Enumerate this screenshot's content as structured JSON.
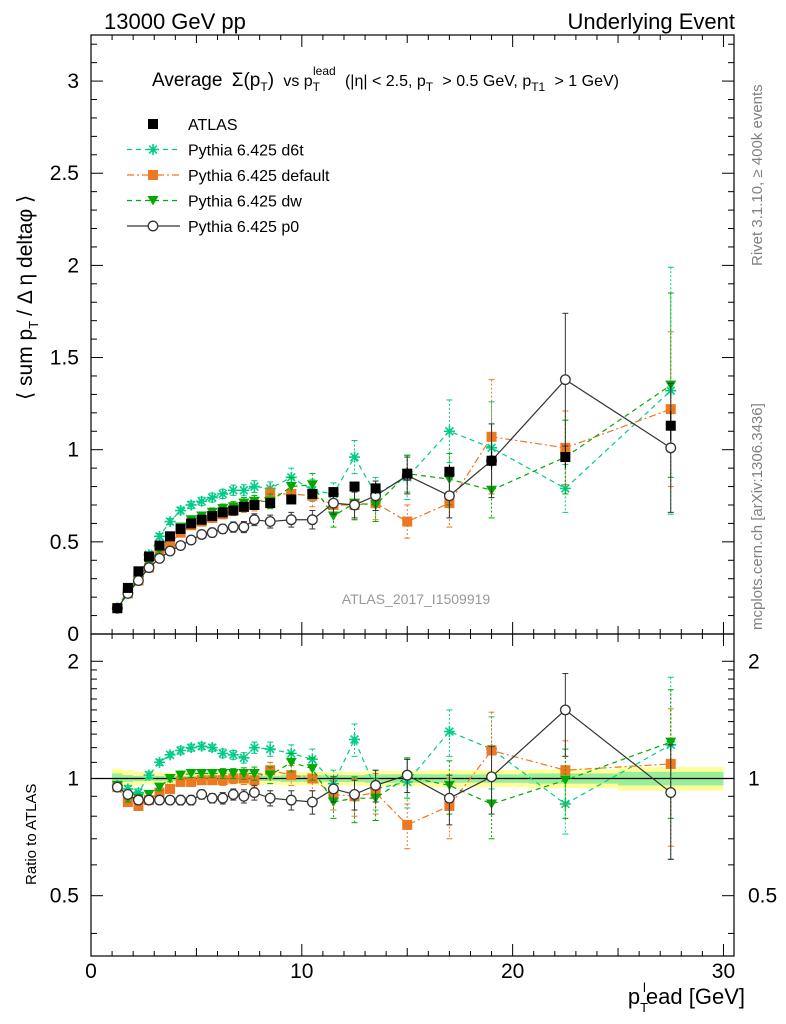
{
  "header": {
    "left": "13000 GeV pp",
    "right": "Underlying Event",
    "title_main": "Average",
    "title_sym": "Σ(p",
    "title_sym_sub": "T",
    "title_sym_close": ")",
    "title_vs": "vs p",
    "title_vs_sub": "T",
    "title_vs_sup": "lead",
    "title_cut1": "(|η| < 2.5, p",
    "title_cut1_sub": "T",
    "title_cut2": "> 0.5 GeV, p",
    "title_cut2_sub": "T1",
    "title_cut3": "> 1 GeV)"
  },
  "side": {
    "rivet": "Rivet 3.1.10, ≥ 400k events",
    "mcplots": "mcplots.cern.ch [arXiv:1306.3436]"
  },
  "annotation": "ATLAS_2017_I1509919",
  "axes": {
    "ylabel_main": "⟨ sum p",
    "ylabel_main_sub": "T",
    "ylabel_main_rest": "/ Δ η deltaφ ⟩",
    "ylabel_ratio": "Ratio to ATLAS",
    "xlabel": "p",
    "xlabel_sub": "T",
    "xlabel_sup": "l",
    "xlabel_rest": "ead [GeV]",
    "main_yticks": [
      "0",
      "0.5",
      "1",
      "1.5",
      "2",
      "2.5",
      "3"
    ],
    "ratio_yticks_left": [
      "0.5",
      "1",
      "2"
    ],
    "ratio_yticks_right": [
      "0.5",
      "1",
      "2"
    ],
    "xticks": [
      "0",
      "10",
      "20",
      "30"
    ]
  },
  "chart_data": {
    "type": "scatter",
    "x": [
      1.25,
      1.75,
      2.25,
      2.75,
      3.25,
      3.75,
      4.25,
      4.75,
      5.25,
      5.75,
      6.25,
      6.75,
      7.25,
      7.75,
      8.5,
      9.5,
      10.5,
      11.5,
      12.5,
      13.5,
      15.0,
      17.0,
      19.0,
      22.5,
      27.5
    ],
    "xlim": [
      0,
      30.5
    ],
    "ylim_main": [
      0,
      3.25
    ],
    "ylim_ratio": [
      0.35,
      2.35
    ],
    "ratio_scale": "log",
    "legend_position": "top-left",
    "grid": false,
    "series": [
      {
        "name": "ATLAS",
        "color": "#000000",
        "marker": "square",
        "values": [
          0.14,
          0.25,
          0.34,
          0.42,
          0.48,
          0.53,
          0.57,
          0.6,
          0.62,
          0.64,
          0.66,
          0.67,
          0.69,
          0.7,
          0.71,
          0.73,
          0.76,
          0.77,
          0.8,
          0.79,
          0.87,
          0.88,
          0.94,
          0.96,
          1.13
        ],
        "errors": [
          0.005,
          0.006,
          0.007,
          0.008,
          0.009,
          0.01,
          0.01,
          0.011,
          0.012,
          0.012,
          0.013,
          0.014,
          0.015,
          0.016,
          0.018,
          0.02,
          0.022,
          0.025,
          0.027,
          0.03,
          0.035,
          0.04,
          0.05,
          0.06,
          0.08
        ],
        "ratio": [
          1,
          1,
          1,
          1,
          1,
          1,
          1,
          1,
          1,
          1,
          1,
          1,
          1,
          1,
          1,
          1,
          1,
          1,
          1,
          1,
          1,
          1,
          1,
          1,
          1
        ],
        "band_stat": [
          0.03,
          0.02,
          0.015,
          0.015,
          0.015,
          0.015,
          0.015,
          0.015,
          0.015,
          0.015,
          0.015,
          0.015,
          0.015,
          0.015,
          0.015,
          0.02,
          0.02,
          0.02,
          0.02,
          0.025,
          0.025,
          0.025,
          0.025,
          0.03,
          0.04
        ],
        "band_total": [
          0.06,
          0.05,
          0.04,
          0.035,
          0.035,
          0.035,
          0.035,
          0.035,
          0.035,
          0.035,
          0.035,
          0.035,
          0.035,
          0.035,
          0.035,
          0.04,
          0.04,
          0.04,
          0.04,
          0.045,
          0.045,
          0.05,
          0.05,
          0.055,
          0.07
        ]
      },
      {
        "name": "Pythia 6.425 d6t",
        "color": "#00cc88",
        "marker": "star",
        "dash": "5,4",
        "values": [
          0.14,
          0.24,
          0.31,
          0.43,
          0.53,
          0.61,
          0.67,
          0.7,
          0.72,
          0.74,
          0.76,
          0.78,
          0.78,
          0.8,
          0.79,
          0.85,
          0.78,
          0.76,
          0.96,
          0.76,
          0.85,
          1.1,
          1.01,
          0.79,
          1.32
        ],
        "errors": [
          0.01,
          0.01,
          0.012,
          0.013,
          0.015,
          0.016,
          0.018,
          0.02,
          0.022,
          0.024,
          0.025,
          0.028,
          0.03,
          0.032,
          0.035,
          0.05,
          0.06,
          0.06,
          0.09,
          0.09,
          0.12,
          0.17,
          0.25,
          0.13,
          0.67
        ],
        "ratio": [
          0.96,
          0.94,
          0.92,
          1.02,
          1.1,
          1.15,
          1.18,
          1.2,
          1.21,
          1.2,
          1.16,
          1.15,
          1.13,
          1.2,
          1.19,
          1.16,
          1.12,
          0.97,
          1.26,
          0.94,
          0.98,
          1.32,
          1.19,
          0.86,
          1.22
        ],
        "ratio_errors": [
          0.02,
          0.02,
          0.02,
          0.02,
          0.02,
          0.02,
          0.025,
          0.025,
          0.025,
          0.025,
          0.03,
          0.03,
          0.035,
          0.04,
          0.05,
          0.06,
          0.07,
          0.08,
          0.12,
          0.11,
          0.14,
          0.18,
          0.25,
          0.14,
          0.6
        ]
      },
      {
        "name": "Pythia 6.425 default",
        "color": "#ee7722",
        "marker": "square",
        "dash": "7,3,2,3",
        "values": [
          0.14,
          0.22,
          0.29,
          0.36,
          0.43,
          0.49,
          0.55,
          0.59,
          0.61,
          0.63,
          0.65,
          0.67,
          0.69,
          0.7,
          0.76,
          0.76,
          0.75,
          0.7,
          0.7,
          0.71,
          0.61,
          0.71,
          1.07,
          1.01,
          1.22
        ],
        "errors": [
          0.01,
          0.01,
          0.012,
          0.013,
          0.015,
          0.016,
          0.018,
          0.02,
          0.022,
          0.024,
          0.025,
          0.028,
          0.03,
          0.032,
          0.04,
          0.05,
          0.06,
          0.06,
          0.08,
          0.09,
          0.09,
          0.13,
          0.31,
          0.2,
          0.42
        ],
        "ratio": [
          0.95,
          0.87,
          0.85,
          0.88,
          0.92,
          0.94,
          0.98,
          0.98,
          0.99,
          0.99,
          0.99,
          1.0,
          1.0,
          0.99,
          1.05,
          1.02,
          1.0,
          0.91,
          0.9,
          0.92,
          0.76,
          0.85,
          1.18,
          1.05,
          1.09
        ],
        "ratio_errors": [
          0.02,
          0.02,
          0.02,
          0.02,
          0.02,
          0.02,
          0.025,
          0.025,
          0.025,
          0.025,
          0.03,
          0.03,
          0.035,
          0.04,
          0.05,
          0.06,
          0.07,
          0.08,
          0.1,
          0.11,
          0.1,
          0.15,
          0.3,
          0.2,
          0.42
        ]
      },
      {
        "name": "Pythia 6.425 dw",
        "color": "#00aa00",
        "marker": "triangle-down",
        "dash": "5,4",
        "values": [
          0.14,
          0.23,
          0.3,
          0.38,
          0.46,
          0.53,
          0.58,
          0.62,
          0.64,
          0.66,
          0.68,
          0.69,
          0.71,
          0.72,
          0.72,
          0.8,
          0.81,
          0.64,
          0.71,
          0.7,
          0.87,
          0.84,
          0.78,
          0.96,
          1.35
        ],
        "errors": [
          0.01,
          0.01,
          0.012,
          0.013,
          0.015,
          0.016,
          0.018,
          0.02,
          0.022,
          0.024,
          0.025,
          0.028,
          0.03,
          0.032,
          0.04,
          0.05,
          0.06,
          0.06,
          0.09,
          0.09,
          0.1,
          0.14,
          0.15,
          0.2,
          0.5
        ],
        "ratio": [
          0.96,
          0.89,
          0.89,
          0.91,
          0.95,
          1.0,
          1.02,
          1.03,
          1.03,
          1.03,
          1.03,
          1.03,
          1.03,
          1.03,
          1.02,
          1.1,
          1.06,
          0.87,
          0.89,
          0.89,
          1.01,
          0.96,
          0.86,
          0.99,
          1.24
        ],
        "ratio_errors": [
          0.02,
          0.02,
          0.02,
          0.02,
          0.02,
          0.02,
          0.025,
          0.025,
          0.025,
          0.025,
          0.03,
          0.03,
          0.035,
          0.04,
          0.05,
          0.06,
          0.07,
          0.08,
          0.12,
          0.11,
          0.12,
          0.15,
          0.16,
          0.2,
          0.45
        ]
      },
      {
        "name": "Pythia 6.425 p0",
        "color": "#333333",
        "marker": "open-circle",
        "dash": "",
        "values": [
          0.14,
          0.22,
          0.29,
          0.36,
          0.41,
          0.45,
          0.48,
          0.51,
          0.54,
          0.55,
          0.57,
          0.58,
          0.58,
          0.62,
          0.61,
          0.62,
          0.62,
          0.71,
          0.7,
          0.75,
          0.86,
          0.75,
          0.94,
          1.38,
          1.01
        ],
        "errors": [
          0.01,
          0.01,
          0.012,
          0.013,
          0.015,
          0.016,
          0.018,
          0.02,
          0.022,
          0.024,
          0.025,
          0.028,
          0.03,
          0.032,
          0.035,
          0.04,
          0.05,
          0.06,
          0.07,
          0.08,
          0.1,
          0.12,
          0.2,
          0.36,
          0.35
        ],
        "ratio": [
          0.95,
          0.91,
          0.88,
          0.88,
          0.88,
          0.88,
          0.88,
          0.88,
          0.91,
          0.89,
          0.89,
          0.91,
          0.9,
          0.92,
          0.89,
          0.88,
          0.87,
          0.94,
          0.91,
          0.96,
          1.02,
          0.89,
          1.01,
          1.5,
          0.92
        ],
        "ratio_errors": [
          0.02,
          0.02,
          0.02,
          0.02,
          0.02,
          0.02,
          0.025,
          0.025,
          0.025,
          0.025,
          0.03,
          0.03,
          0.035,
          0.04,
          0.04,
          0.05,
          0.06,
          0.07,
          0.08,
          0.09,
          0.1,
          0.13,
          0.2,
          0.36,
          0.3
        ]
      }
    ]
  }
}
